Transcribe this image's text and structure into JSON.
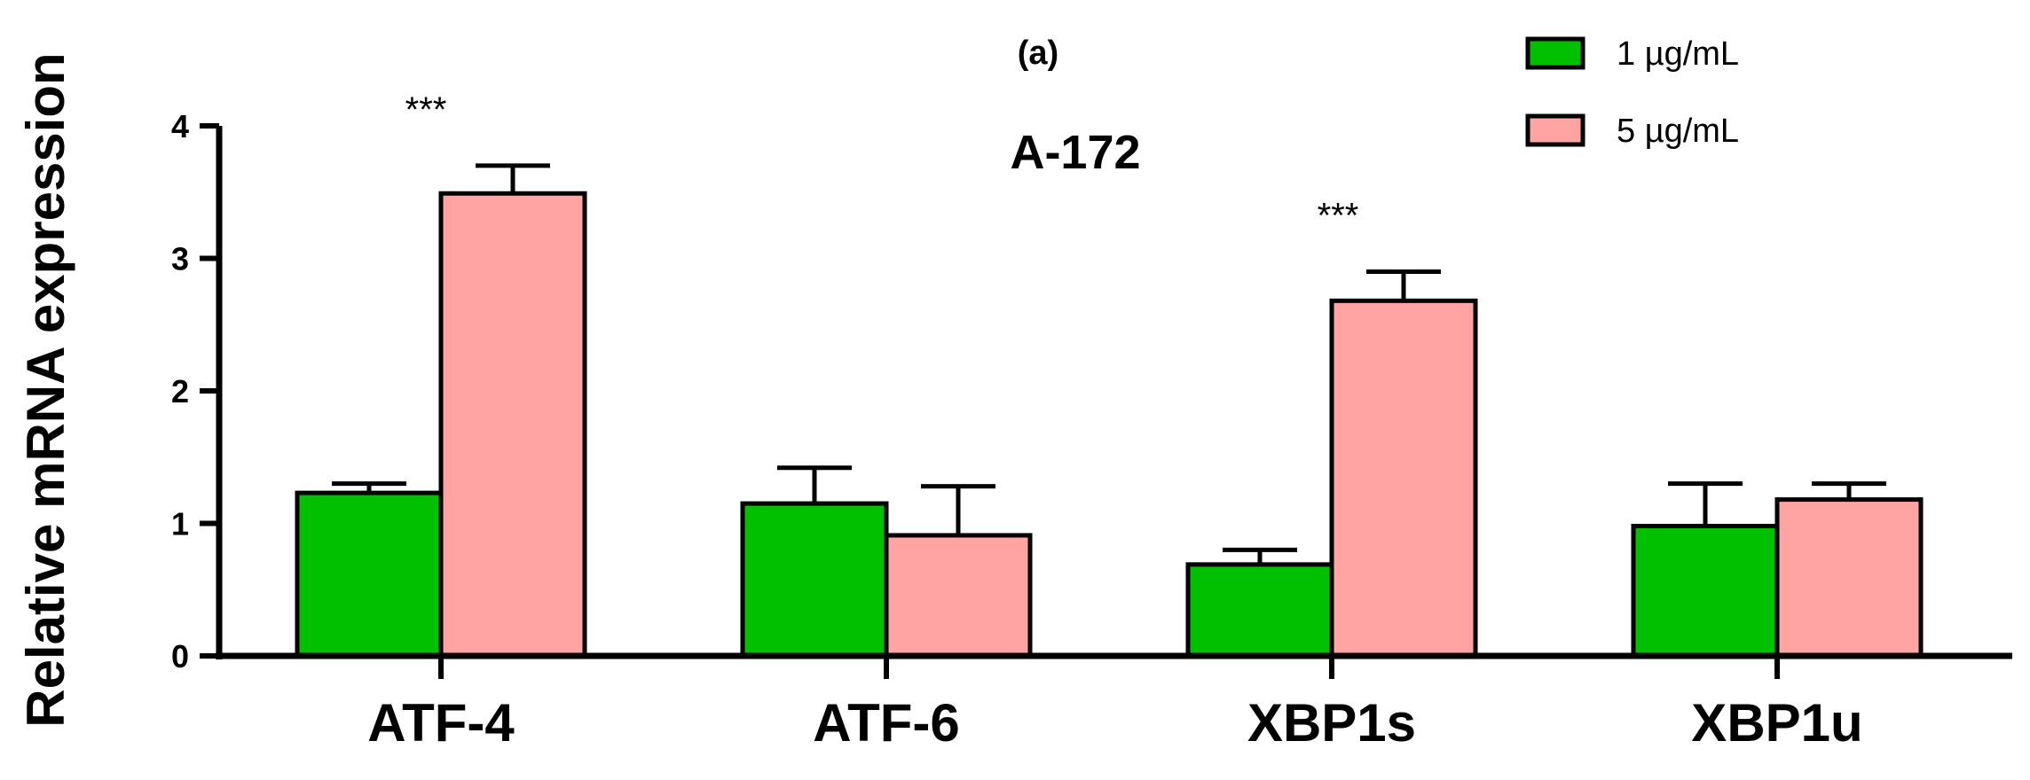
{
  "chart_data": {
    "type": "bar",
    "panel_label": "(a)",
    "title": "A-172",
    "xlabel": "",
    "ylabel": "Relative mRNA expression",
    "ylim": [
      0,
      4
    ],
    "yticks": [
      0,
      1,
      2,
      3,
      4
    ],
    "categories": [
      "ATF-4",
      "ATF-6",
      "XBP1s",
      "XBP1u"
    ],
    "series": [
      {
        "name": "1 µg/mL",
        "color": "#00c000",
        "values": [
          1.23,
          1.15,
          0.69,
          0.98
        ],
        "errors": [
          0.07,
          0.27,
          0.11,
          0.32
        ]
      },
      {
        "name": "5 µg/mL",
        "color": "#ffa3a3",
        "values": [
          3.49,
          0.91,
          2.68,
          1.18
        ],
        "errors": [
          0.21,
          0.37,
          0.22,
          0.12
        ]
      }
    ],
    "annotations": [
      {
        "category": "ATF-4",
        "text": "***"
      },
      {
        "category": "XBP1s",
        "text": "***"
      }
    ],
    "legend_position": "top-right",
    "grid": false
  }
}
